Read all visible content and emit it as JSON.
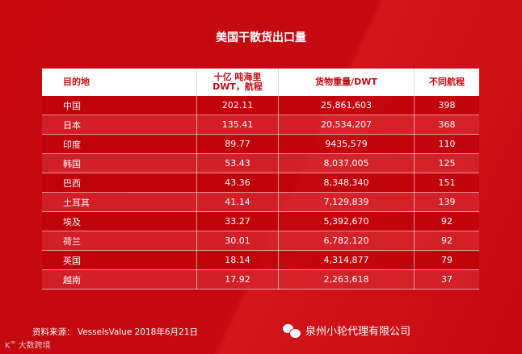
{
  "title": "美国干散货出口量",
  "table": {
    "headers": [
      "目的地",
      "十亿 吨海里 DWT，航程",
      "货物重量/DWT",
      "不同航程"
    ],
    "rows": [
      [
        "中国",
        "202.11",
        "25,861,603",
        "398"
      ],
      [
        "日本",
        "135.41",
        "20,534,207",
        "368"
      ],
      [
        "印度",
        "89.77",
        "9435,579",
        "110"
      ],
      [
        "韩国",
        "53.43",
        "8,037,005",
        "125"
      ],
      [
        "巴西",
        "43.36",
        "8,348,340",
        "151"
      ],
      [
        "土耳其",
        "41.14",
        "7,129,839",
        "139"
      ],
      [
        "埃及",
        "33.27",
        "5,392,670",
        "92"
      ],
      [
        "荷兰",
        "30.01",
        "6,782,120",
        "92"
      ],
      [
        "英国",
        "18.14",
        "4,314,877",
        "79"
      ],
      [
        "越南",
        "17.92",
        "2,263,618",
        "37"
      ]
    ]
  },
  "source": "资料来源：  VesselsValue 2018年6月21日",
  "brand": "大数跨境",
  "watermark": "泉州小轮代理有限公司"
}
